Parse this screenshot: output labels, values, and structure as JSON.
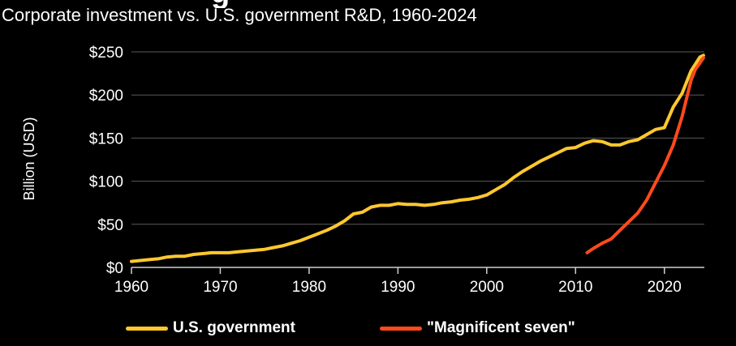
{
  "header": {
    "title_partial": "g",
    "subtitle": "Corporate investment vs. U.S. government R&D, 1960-2024"
  },
  "chart_data": {
    "type": "line",
    "title": "Corporate investment vs. U.S. government R&D, 1960-2024",
    "xlabel": "",
    "ylabel": "Billion (USD)",
    "xlim": [
      1960,
      2024.5
    ],
    "ylim": [
      0,
      250
    ],
    "xticks": [
      1960,
      1970,
      1980,
      1990,
      2000,
      2010,
      2020
    ],
    "yticks": [
      0,
      50,
      100,
      150,
      200,
      250
    ],
    "ytick_labels": [
      "$0",
      "$50",
      "$100",
      "$150",
      "$200",
      "$250"
    ],
    "grid": "horizontal",
    "legend_position": "bottom",
    "series": [
      {
        "name": "U.S. government",
        "color": "#ffc82e",
        "x": [
          1960,
          1961,
          1962,
          1963,
          1964,
          1965,
          1966,
          1967,
          1968,
          1969,
          1970,
          1971,
          1972,
          1973,
          1974,
          1975,
          1976,
          1977,
          1978,
          1979,
          1980,
          1981,
          1982,
          1983,
          1984,
          1985,
          1986,
          1987,
          1988,
          1989,
          1990,
          1991,
          1992,
          1993,
          1994,
          1995,
          1996,
          1997,
          1998,
          1999,
          2000,
          2001,
          2002,
          2003,
          2004,
          2005,
          2006,
          2007,
          2008,
          2009,
          2010,
          2011,
          2012,
          2013,
          2014,
          2015,
          2016,
          2017,
          2018,
          2019,
          2020,
          2021,
          2022,
          2023,
          2024,
          2024.4
        ],
        "values": [
          7,
          8,
          9,
          10,
          12,
          13,
          13,
          15,
          16,
          17,
          17,
          17,
          18,
          19,
          20,
          21,
          23,
          25,
          28,
          31,
          35,
          39,
          43,
          48,
          54,
          62,
          64,
          70,
          72,
          72,
          74,
          73,
          73,
          72,
          73,
          75,
          76,
          78,
          79,
          81,
          84,
          90,
          96,
          104,
          111,
          117,
          123,
          128,
          133,
          138,
          139,
          144,
          147,
          146,
          142,
          142,
          146,
          148,
          154,
          160,
          162,
          186,
          202,
          228,
          244,
          246
        ]
      },
      {
        "name": "\"Magnificent seven\"",
        "color": "#ff4a1c",
        "x": [
          2011.3,
          2012,
          2013,
          2014,
          2015,
          2016,
          2017,
          2018,
          2019,
          2020,
          2021,
          2022,
          2023,
          2023.5,
          2024,
          2024.4
        ],
        "values": [
          17,
          22,
          28,
          33,
          43,
          53,
          63,
          78,
          98,
          118,
          142,
          175,
          217,
          230,
          237,
          243
        ]
      }
    ]
  }
}
